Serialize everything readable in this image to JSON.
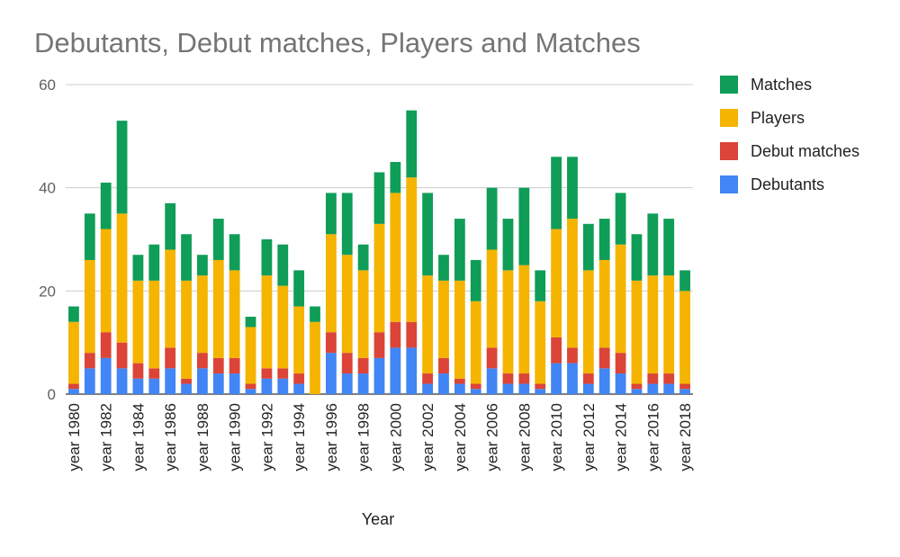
{
  "chart_data": {
    "type": "bar",
    "stacked": true,
    "title": "Debutants, Debut matches, Players and Matches",
    "xlabel": "Year",
    "ylabel": "",
    "ylim": [
      0,
      60
    ],
    "yticks": [
      0,
      20,
      40,
      60
    ],
    "grid": true,
    "legend_position": "right",
    "categories": [
      "year 1980",
      "year 1981",
      "year 1982",
      "year 1983",
      "year 1984",
      "year 1985",
      "year 1986",
      "year 1987",
      "year 1988",
      "year 1989",
      "year 1990",
      "year 1991",
      "year 1992",
      "year 1993",
      "year 1994",
      "year 1995",
      "year 1996",
      "year 1997",
      "year 1998",
      "year 1999",
      "year 2000",
      "year 2001",
      "year 2002",
      "year 2003",
      "year 2004",
      "year 2005",
      "year 2006",
      "year 2007",
      "year 2008",
      "year 2009",
      "year 2010",
      "year 2011",
      "year 2012",
      "year 2013",
      "year 2014",
      "year 2015",
      "year 2016",
      "year 2017",
      "year 2018"
    ],
    "x_tick_labels": [
      "year 1980",
      "year 1982",
      "year 1984",
      "year 1986",
      "year 1988",
      "year 1990",
      "year 1992",
      "year 1994",
      "year 1996",
      "year 1998",
      "year 2000",
      "year 2002",
      "year 2004",
      "year 2006",
      "year 2008",
      "year 2010",
      "year 2012",
      "year 2014",
      "year 2016",
      "year 2018"
    ],
    "series": [
      {
        "name": "Debutants",
        "color": "#4285F4",
        "values": [
          1,
          5,
          7,
          5,
          3,
          3,
          5,
          2,
          5,
          4,
          4,
          1,
          3,
          3,
          2,
          0,
          8,
          4,
          4,
          7,
          9,
          9,
          2,
          4,
          2,
          1,
          5,
          2,
          2,
          1,
          6,
          6,
          2,
          5,
          4,
          1,
          2,
          2,
          1
        ]
      },
      {
        "name": "Debut matches",
        "color": "#DB4437",
        "values": [
          1,
          3,
          5,
          5,
          3,
          2,
          4,
          1,
          3,
          3,
          3,
          1,
          2,
          2,
          2,
          0,
          4,
          4,
          3,
          5,
          5,
          5,
          2,
          3,
          1,
          1,
          4,
          2,
          2,
          1,
          5,
          3,
          2,
          4,
          4,
          1,
          2,
          2,
          1
        ]
      },
      {
        "name": "Players",
        "color": "#F4B400",
        "values": [
          12,
          18,
          20,
          25,
          16,
          17,
          19,
          19,
          15,
          19,
          17,
          11,
          18,
          16,
          13,
          14,
          19,
          19,
          17,
          21,
          25,
          28,
          19,
          15,
          19,
          16,
          19,
          20,
          21,
          16,
          21,
          25,
          20,
          17,
          21,
          20,
          19,
          19,
          18
        ]
      },
      {
        "name": "Matches",
        "color": "#0F9D58",
        "values": [
          3,
          9,
          9,
          18,
          5,
          7,
          9,
          9,
          4,
          8,
          7,
          2,
          7,
          8,
          7,
          3,
          8,
          12,
          5,
          10,
          6,
          13,
          16,
          5,
          12,
          8,
          12,
          10,
          15,
          6,
          14,
          12,
          9,
          8,
          10,
          9,
          12,
          11,
          4
        ]
      }
    ],
    "legend_order": [
      "Matches",
      "Players",
      "Debut matches",
      "Debutants"
    ]
  }
}
